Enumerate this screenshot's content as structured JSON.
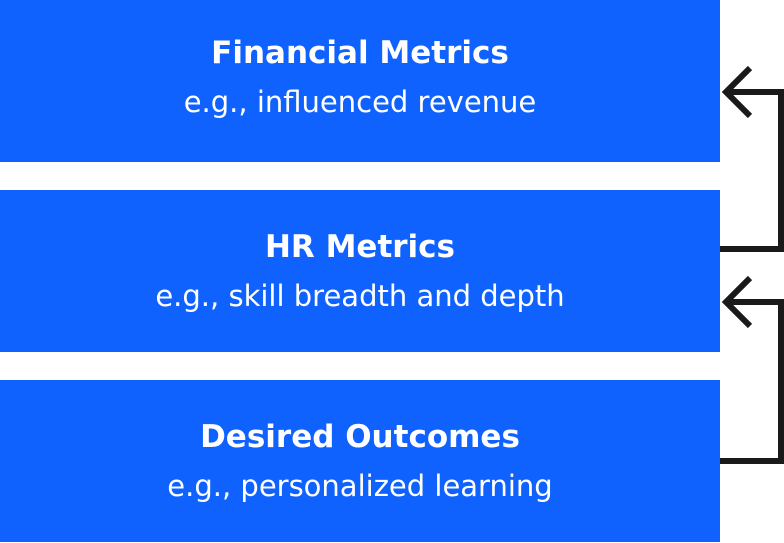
{
  "diagram": {
    "boxes": [
      {
        "title": "Financial Metrics",
        "subtitle": "e.g., influenced revenue"
      },
      {
        "title": "HR Metrics",
        "subtitle": "e.g., skill breadth and depth"
      },
      {
        "title": "Desired Outcomes",
        "subtitle": "e.g., personalized learning"
      }
    ],
    "colors": {
      "box_fill": "#0f62fe",
      "box_text": "#ffffff",
      "connector": "#1a1a1a"
    }
  }
}
